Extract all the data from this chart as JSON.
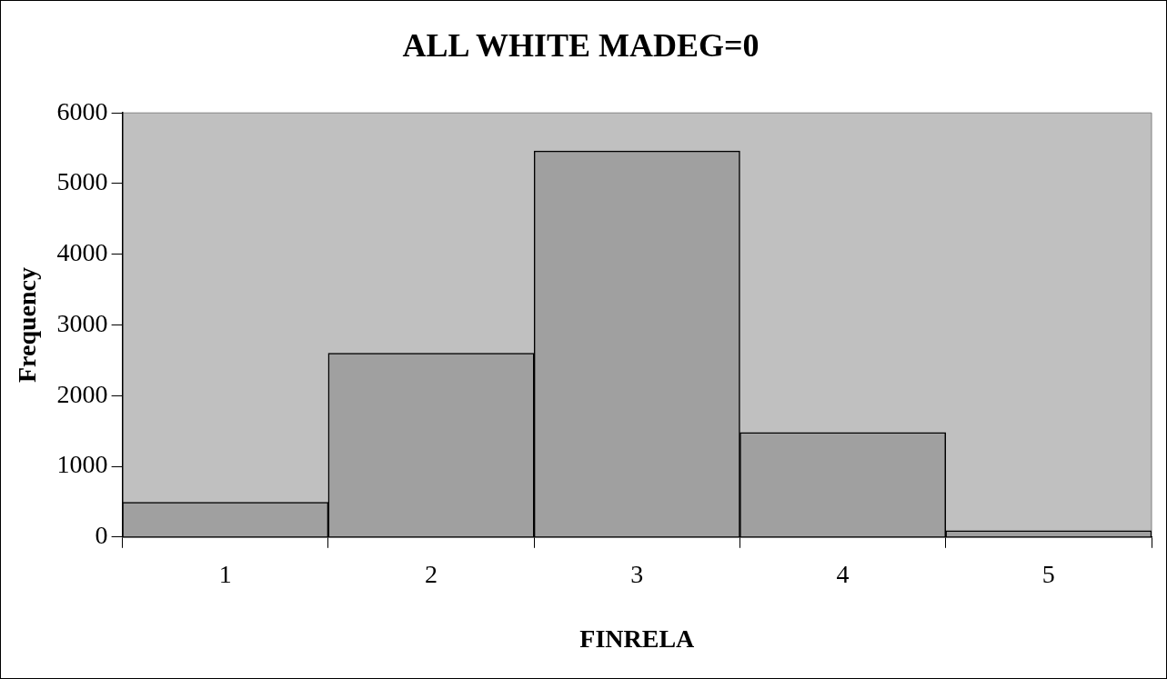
{
  "chart_data": {
    "type": "bar",
    "title": "ALL WHITE MADEG=0",
    "xlabel": "FINRELA",
    "ylabel": "Frequency",
    "categories": [
      "1",
      "2",
      "3",
      "4",
      "5"
    ],
    "values": [
      490,
      2600,
      5460,
      1480,
      90
    ],
    "color": "#a0a0a0",
    "ylim": [
      0,
      6000
    ],
    "yticks": [
      0,
      1000,
      2000,
      3000,
      4000,
      5000,
      6000
    ]
  }
}
